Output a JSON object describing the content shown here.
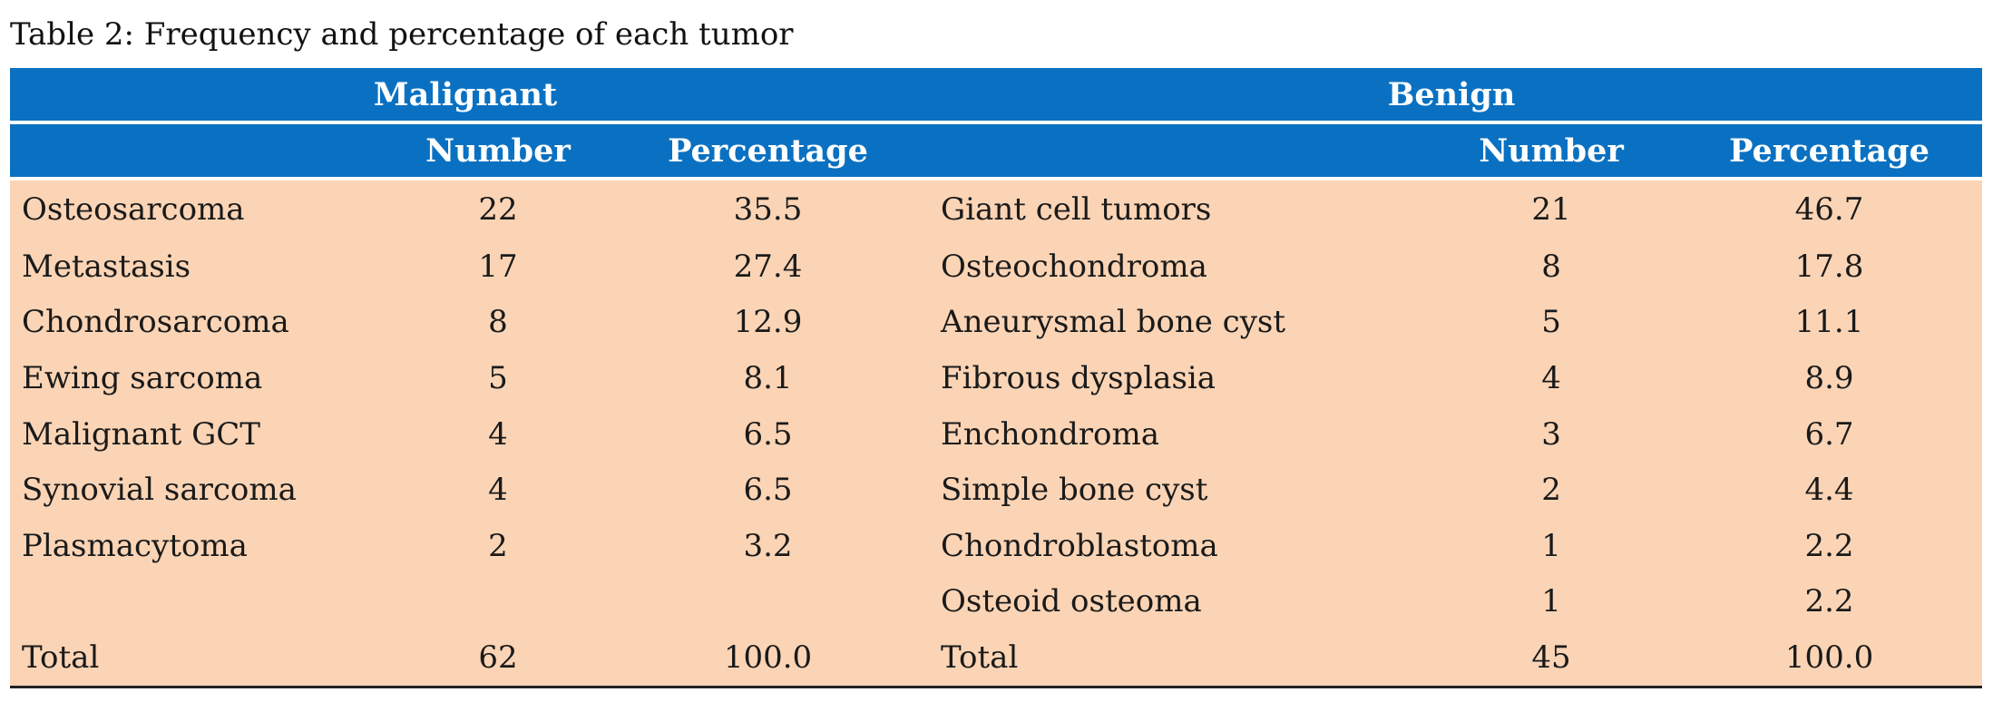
{
  "caption": "Table 2: Frequency and percentage of each tumor",
  "headers": {
    "malignant": "Malignant",
    "benign": "Benign",
    "number": "Number",
    "percentage": "Percentage"
  },
  "rows": [
    {
      "m_name": "Osteosarcoma",
      "m_num": "22",
      "m_pct": "35.5",
      "b_name": "Giant cell tumors",
      "b_num": "21",
      "b_pct": "46.7"
    },
    {
      "m_name": "Metastasis",
      "m_num": "17",
      "m_pct": "27.4",
      "b_name": "Osteochondroma",
      "b_num": "8",
      "b_pct": "17.8"
    },
    {
      "m_name": "Chondrosarcoma",
      "m_num": "8",
      "m_pct": "12.9",
      "b_name": "Aneurysmal bone cyst",
      "b_num": "5",
      "b_pct": "11.1"
    },
    {
      "m_name": "Ewing sarcoma",
      "m_num": "5",
      "m_pct": "8.1",
      "b_name": "Fibrous dysplasia",
      "b_num": "4",
      "b_pct": "8.9"
    },
    {
      "m_name": "Malignant GCT",
      "m_num": "4",
      "m_pct": "6.5",
      "b_name": "Enchondroma",
      "b_num": "3",
      "b_pct": "6.7"
    },
    {
      "m_name": "Synovial sarcoma",
      "m_num": "4",
      "m_pct": "6.5",
      "b_name": "Simple bone cyst",
      "b_num": "2",
      "b_pct": "4.4"
    },
    {
      "m_name": "Plasmacytoma",
      "m_num": "2",
      "m_pct": "3.2",
      "b_name": "Chondroblastoma",
      "b_num": "1",
      "b_pct": "2.2"
    },
    {
      "m_name": "",
      "m_num": "",
      "m_pct": "",
      "b_name": "Osteoid osteoma",
      "b_num": "1",
      "b_pct": "2.2"
    }
  ],
  "total": {
    "m_name": "Total",
    "m_num": "62",
    "m_pct": "100.0",
    "b_name": "Total",
    "b_num": "45",
    "b_pct": "100.0"
  },
  "colors": {
    "header_blue": "#0a71c2",
    "body_peach": "#fad4b5"
  }
}
